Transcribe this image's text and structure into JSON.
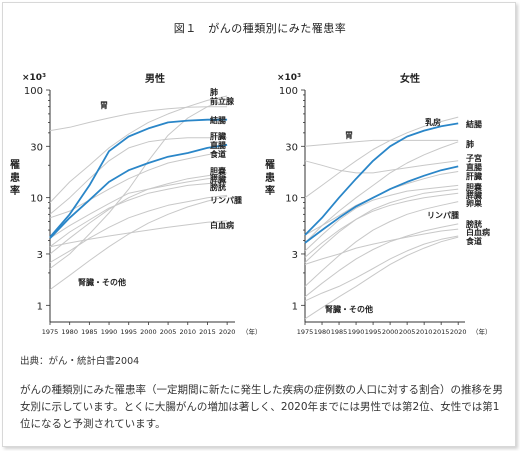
{
  "figure": {
    "title": "図１　がんの種類別にみた罹患率",
    "source": "出典：がん・統計白書2004",
    "caption": "がんの種類別にみた罹患率（一定期間に新たに発生した疾病の症例数の人口に対する割合）の推移を男女別に示しています。とくに大腸がんの増加は著しく、2020年までには男性では第2位、女性では第1位になると予測されています。"
  },
  "colors": {
    "highlight": "#2a86c8",
    "other": "#c8c8c8",
    "axis": "#333333"
  },
  "chart_data": [
    {
      "type": "line",
      "title": "男性",
      "ylabel": "罹患率",
      "yunit": "×10³",
      "xunit": "（年）",
      "yscale": "log",
      "ylim": [
        0.7,
        100
      ],
      "xlim": [
        1975,
        2022
      ],
      "yticks": [
        1,
        3,
        10,
        30,
        100
      ],
      "xticks": [
        1975,
        1980,
        1985,
        1990,
        1995,
        2000,
        2005,
        2010,
        2015,
        2020
      ],
      "x": [
        1975,
        1980,
        1985,
        1990,
        1995,
        2000,
        2005,
        2010,
        2015,
        2020
      ],
      "series": [
        {
          "name": "胃",
          "highlight": false,
          "values": [
            42,
            45,
            50,
            55,
            60,
            64,
            67,
            69,
            70,
            70
          ]
        },
        {
          "name": "肺",
          "highlight": false,
          "values": [
            9,
            14,
            20,
            29,
            39,
            50,
            60,
            70,
            80,
            88
          ]
        },
        {
          "name": "前立腺",
          "highlight": false,
          "values": [
            2.2,
            3.0,
            4.6,
            7.2,
            12,
            22,
            38,
            55,
            70,
            82
          ]
        },
        {
          "name": "結腸",
          "highlight": true,
          "values": [
            4.3,
            7.0,
            13,
            27,
            37,
            44,
            50,
            52,
            53,
            53
          ]
        },
        {
          "name": "肝臓",
          "highlight": false,
          "values": [
            7,
            10,
            15,
            22,
            29,
            33,
            35,
            36,
            36,
            36
          ]
        },
        {
          "name": "直腸",
          "highlight": true,
          "values": [
            4.2,
            6.5,
            9.5,
            14,
            18,
            21,
            24,
            26,
            29,
            31
          ]
        },
        {
          "name": "食道",
          "highlight": false,
          "values": [
            6.5,
            7.5,
            9.5,
            12,
            15,
            18,
            21,
            23,
            25,
            27
          ]
        },
        {
          "name": "胆嚢",
          "highlight": false,
          "values": [
            3.0,
            4.2,
            5.8,
            7.8,
            10,
            12,
            13.5,
            15,
            16,
            17
          ]
        },
        {
          "name": "膵臓",
          "highlight": false,
          "values": [
            4.2,
            5.5,
            7.0,
            8.8,
            11,
            12,
            13,
            14,
            15,
            15.5
          ]
        },
        {
          "name": "膀胱",
          "highlight": false,
          "values": [
            3.5,
            4.8,
            6.2,
            8.0,
            9.5,
            11,
            12,
            13,
            13.5,
            14
          ]
        },
        {
          "name": "リンパ腫",
          "highlight": false,
          "values": [
            2.5,
            3.2,
            4.2,
            5.3,
            6.5,
            7.5,
            8.5,
            9.2,
            10,
            10.5
          ]
        },
        {
          "name": "白血病",
          "highlight": false,
          "values": [
            3.5,
            3.8,
            4.1,
            4.4,
            4.7,
            5.0,
            5.3,
            5.6,
            5.9,
            6.1
          ]
        },
        {
          "name": "腎臓・その他",
          "highlight": false,
          "values": [
            1.4,
            1.9,
            2.6,
            3.5,
            4.6,
            5.8,
            7.0,
            8.2,
            9.3,
            10.3
          ]
        }
      ]
    },
    {
      "type": "line",
      "title": "女性",
      "ylabel": "罹患率",
      "yunit": "×10³",
      "xunit": "（年）",
      "yscale": "log",
      "ylim": [
        0.7,
        100
      ],
      "xlim": [
        1975,
        2022
      ],
      "yticks": [
        1,
        3,
        10,
        30,
        100
      ],
      "xticks": [
        1975,
        1980,
        1985,
        1990,
        1995,
        2000,
        2005,
        2010,
        2015,
        2020
      ],
      "x": [
        1975,
        1980,
        1985,
        1990,
        1995,
        2000,
        2005,
        2010,
        2015,
        2020
      ],
      "series": [
        {
          "name": "胃",
          "highlight": false,
          "values": [
            30,
            31,
            32,
            33,
            34,
            34,
            34,
            34,
            34,
            34
          ]
        },
        {
          "name": "乳房",
          "highlight": false,
          "values": [
            10,
            13,
            17,
            22,
            28,
            34,
            40,
            46,
            51,
            56
          ]
        },
        {
          "name": "結腸",
          "highlight": true,
          "values": [
            4.5,
            6.5,
            10,
            15,
            22,
            30,
            37,
            42,
            46,
            49
          ]
        },
        {
          "name": "肺",
          "highlight": false,
          "values": [
            3.8,
            5.5,
            7.5,
            10,
            13,
            17,
            21,
            25,
            29,
            33
          ]
        },
        {
          "name": "子宮",
          "highlight": false,
          "values": [
            22,
            20,
            18,
            17,
            17,
            18,
            19,
            20,
            21,
            22
          ]
        },
        {
          "name": "直腸",
          "highlight": true,
          "values": [
            3.8,
            5.0,
            6.5,
            8.3,
            10,
            12,
            14,
            16,
            18,
            19.5
          ]
        },
        {
          "name": "肝臓",
          "highlight": false,
          "values": [
            4.5,
            5.5,
            6.8,
            8.5,
            10,
            12,
            13.5,
            15,
            16.5,
            17.5
          ]
        },
        {
          "name": "胆嚢",
          "highlight": false,
          "values": [
            3.2,
            4.5,
            6.2,
            8.0,
            9.5,
            10.5,
            11.5,
            12,
            12.5,
            13
          ]
        },
        {
          "name": "膵臓",
          "highlight": false,
          "values": [
            2.5,
            3.5,
            4.8,
            6.3,
            7.8,
            9.0,
            10,
            11,
            11.5,
            12
          ]
        },
        {
          "name": "卵巣",
          "highlight": false,
          "values": [
            2.8,
            3.8,
            5.0,
            6.3,
            7.5,
            8.5,
            9.3,
            10,
            10.5,
            11
          ]
        },
        {
          "name": "リンパ腫",
          "highlight": false,
          "values": [
            1.5,
            2.1,
            2.9,
            3.9,
            5.0,
            6.0,
            7.0,
            7.8,
            8.5,
            9.2
          ]
        },
        {
          "name": "膀胱",
          "highlight": false,
          "values": [
            1.2,
            1.6,
            2.1,
            2.7,
            3.3,
            3.9,
            4.4,
            4.9,
            5.3,
            5.7
          ]
        },
        {
          "name": "白血病",
          "highlight": false,
          "values": [
            2.4,
            2.7,
            3.0,
            3.4,
            3.7,
            4.0,
            4.3,
            4.6,
            4.9,
            5.1
          ]
        },
        {
          "name": "食道",
          "highlight": false,
          "values": [
            1.1,
            1.3,
            1.5,
            1.8,
            2.2,
            2.7,
            3.2,
            3.7,
            4.1,
            4.4
          ]
        },
        {
          "name": "腎臓・その他",
          "highlight": false,
          "values": [
            0.75,
            0.95,
            1.2,
            1.5,
            1.9,
            2.4,
            2.9,
            3.4,
            3.9,
            4.3
          ]
        }
      ],
      "labels": [
        {
          "series": "胃",
          "x": 1985,
          "y": 36,
          "align": "start",
          "pos": "inside"
        },
        {
          "series": "乳房",
          "x": 2006,
          "y": 50,
          "align": "start",
          "pos": "inside"
        },
        {
          "series": "リンパ腫",
          "x": 2006,
          "y": 7.5,
          "align": "start",
          "pos": "inside"
        },
        {
          "series": "腎臓・その他",
          "x": 1977,
          "y": 0.9,
          "align": "start",
          "pos": "inside"
        },
        {
          "series": "結腸",
          "x": 2022,
          "y": 50,
          "align": "start",
          "pos": "right"
        },
        {
          "series": "肺",
          "x": 2022,
          "y": 34,
          "align": "start",
          "pos": "right"
        },
        {
          "series": "子宮",
          "x": 2022,
          "y": 24,
          "align": "start",
          "pos": "right"
        },
        {
          "series": "直腸",
          "x": 2022,
          "y": 20.5,
          "align": "start",
          "pos": "right"
        },
        {
          "series": "肝臓",
          "x": 2022,
          "y": 17.5,
          "align": "start",
          "pos": "right"
        },
        {
          "series": "胆嚢",
          "x": 2022,
          "y": 13.2,
          "align": "start",
          "pos": "right"
        },
        {
          "series": "膵臓",
          "x": 2022,
          "y": 11.6,
          "align": "start",
          "pos": "right"
        },
        {
          "series": "卵巣",
          "x": 2022,
          "y": 10.1,
          "align": "start",
          "pos": "right"
        },
        {
          "series": "膀胱",
          "x": 2022,
          "y": 6.4,
          "align": "start",
          "pos": "right"
        },
        {
          "series": "白血病",
          "x": 2022,
          "y": 5.5,
          "align": "start",
          "pos": "right"
        },
        {
          "series": "食道",
          "x": 2022,
          "y": 4.7,
          "align": "start",
          "pos": "right"
        }
      ]
    }
  ]
}
